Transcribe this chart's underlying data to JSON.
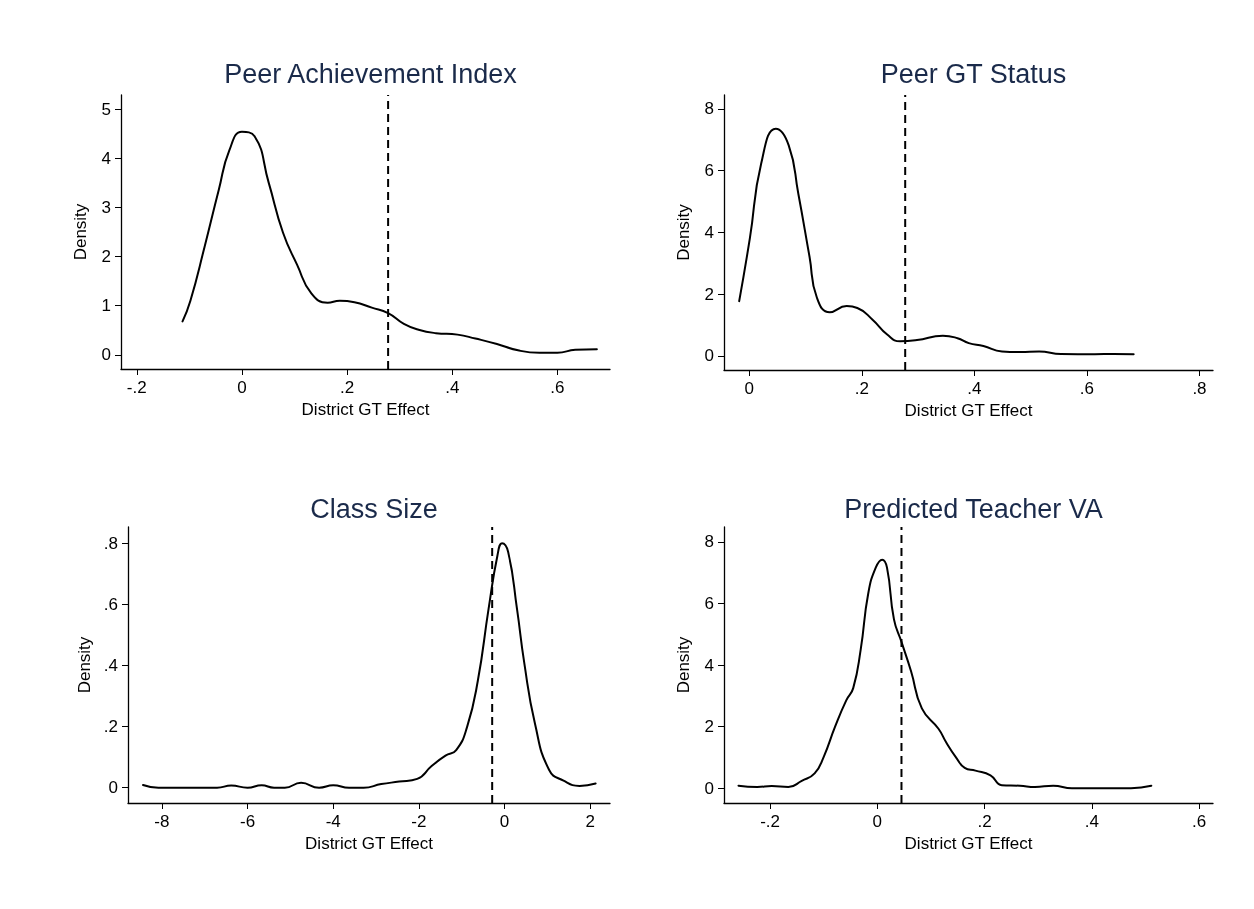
{
  "chart_data": [
    {
      "type": "line",
      "title": "Peer Achievement Index",
      "xlabel": "District GT Effect",
      "ylabel": "Density",
      "color": "#000000",
      "marker": "none",
      "line_style": "solid",
      "grid": false,
      "x": [
        -0.113,
        -0.098,
        -0.071,
        -0.044,
        -0.024,
        0,
        0.024,
        0.051,
        0.078,
        0.105,
        0.132,
        0.163,
        0.186,
        0.214,
        0.247,
        0.278,
        0.308,
        0.336,
        0.369,
        0.41,
        0.444,
        0.485,
        0.525,
        0.566,
        0.6,
        0.634,
        0.675
      ],
      "values": [
        0.68,
        1.1,
        2.2,
        3.36,
        4.16,
        4.54,
        4.45,
        3.5,
        2.49,
        1.83,
        1.25,
        1.06,
        1.1,
        1.07,
        0.96,
        0.85,
        0.63,
        0.51,
        0.44,
        0.41,
        0.33,
        0.22,
        0.09,
        0.04,
        0.04,
        0.1,
        0.11
      ],
      "xlim": [
        -0.23,
        0.7
      ],
      "ylim": [
        -0.29,
        5.29
      ],
      "xticks": [
        {
          "value": -0.2,
          "label": "-.2"
        },
        0,
        {
          "value": 0.2,
          "label": ".2"
        },
        {
          "value": 0.4,
          "label": ".4"
        },
        {
          "value": 0.6,
          "label": ".6"
        }
      ],
      "yticks": [
        0,
        1,
        2,
        3,
        4,
        5
      ],
      "ref_lines": [
        {
          "axis": "x",
          "value": 0.278,
          "color": "#000000",
          "line_style": "dashed"
        }
      ]
    },
    {
      "type": "line",
      "title": "Peer GT Status",
      "xlabel": "District GT Effect",
      "ylabel": "Density",
      "color": "#000000",
      "marker": "none",
      "line_style": "solid",
      "grid": false,
      "x": [
        -0.018,
        0.001,
        0.021,
        0.047,
        0.07,
        0.087,
        0.107,
        0.12,
        0.143,
        0.173,
        0.192,
        0.219,
        0.245,
        0.268,
        0.298,
        0.344,
        0.37,
        0.39,
        0.416,
        0.449,
        0.482,
        0.515,
        0.554,
        0.614,
        0.647,
        0.683
      ],
      "values": [
        1.77,
        3.81,
        6.22,
        7.36,
        6.82,
        5.26,
        3.21,
        1.89,
        1.41,
        1.61,
        1.55,
        1.17,
        0.69,
        0.47,
        0.51,
        0.65,
        0.57,
        0.41,
        0.32,
        0.14,
        0.12,
        0.14,
        0.06,
        0.05,
        0.06,
        0.05
      ],
      "xlim": [
        -0.045,
        0.824
      ],
      "ylim": [
        -0.46,
        8.45
      ],
      "xticks": [
        0,
        {
          "value": 0.2,
          "label": ".2"
        },
        {
          "value": 0.4,
          "label": ".4"
        },
        {
          "value": 0.6,
          "label": ".6"
        },
        {
          "value": 0.8,
          "label": ".8"
        }
      ],
      "yticks": [
        0,
        2,
        4,
        6,
        8
      ],
      "ref_lines": [
        {
          "axis": "x",
          "value": 0.277,
          "color": "#000000",
          "line_style": "dashed"
        }
      ]
    },
    {
      "type": "line",
      "title": "Class Size",
      "xlabel": "District GT Effect",
      "ylabel": "Density",
      "color": "#000000",
      "marker": "none",
      "line_style": "solid",
      "grid": false,
      "x": [
        -8.44,
        -8.08,
        -6.71,
        -6.38,
        -6.0,
        -5.67,
        -5.38,
        -5.13,
        -4.75,
        -4.33,
        -4.0,
        -3.63,
        -3.29,
        -2.88,
        -2.46,
        -2.04,
        -1.71,
        -1.38,
        -1.13,
        -0.875,
        -0.625,
        -0.375,
        -0.167,
        -0.06,
        0.083,
        0.29,
        0.458,
        0.708,
        1.04,
        1.375,
        1.75,
        2.125
      ],
      "values": [
        0.009,
        0,
        0,
        0.007,
        0,
        0.008,
        0,
        0,
        0.016,
        0,
        0.008,
        0,
        0,
        0.012,
        0.02,
        0.029,
        0.07,
        0.105,
        0.123,
        0.199,
        0.35,
        0.584,
        0.76,
        0.8,
        0.771,
        0.584,
        0.409,
        0.21,
        0.058,
        0.023,
        0.006,
        0.014
      ],
      "xlim": [
        -8.79,
        2.46
      ],
      "ylim": [
        -0.05,
        0.853
      ],
      "xticks": [
        -8,
        -6,
        -4,
        -2,
        0,
        2
      ],
      "yticks": [
        0,
        {
          "value": 0.2,
          "label": ".2"
        },
        {
          "value": 0.4,
          "label": ".4"
        },
        {
          "value": 0.6,
          "label": ".6"
        },
        {
          "value": 0.8,
          "label": ".8"
        }
      ],
      "ref_lines": [
        {
          "axis": "x",
          "value": -0.29,
          "color": "#000000",
          "line_style": "dashed"
        }
      ]
    },
    {
      "type": "line",
      "title": "Predicted Teacher VA",
      "xlabel": "District GT Effect",
      "ylabel": "Density",
      "color": "#000000",
      "marker": "none",
      "line_style": "solid",
      "grid": false,
      "x": [
        -0.259,
        -0.224,
        -0.197,
        -0.166,
        -0.141,
        -0.117,
        -0.1,
        -0.079,
        -0.058,
        -0.045,
        -0.031,
        -0.017,
        -0.003,
        0.009,
        0.018,
        0.031,
        0.045,
        0.063,
        0.083,
        0.114,
        0.128,
        0.146,
        0.163,
        0.183,
        0.211,
        0.232,
        0.266,
        0.294,
        0.328,
        0.363,
        0.473,
        0.511
      ],
      "values": [
        0.08,
        0.04,
        0.07,
        0.04,
        0.24,
        0.48,
        1.02,
        1.99,
        2.85,
        3.25,
        4.51,
        6.32,
        7.16,
        7.42,
        7.16,
        5.48,
        4.75,
        3.79,
        2.59,
        1.93,
        1.5,
        1.02,
        0.66,
        0.57,
        0.42,
        0.1,
        0.08,
        0.04,
        0.08,
        0,
        0,
        0.08
      ],
      "xlim": [
        -0.286,
        0.626
      ],
      "ylim": [
        -0.48,
        8.48
      ],
      "xticks": [
        {
          "value": -0.2,
          "label": "-.2"
        },
        0,
        {
          "value": 0.2,
          "label": ".2"
        },
        {
          "value": 0.4,
          "label": ".4"
        },
        {
          "value": 0.6,
          "label": ".6"
        }
      ],
      "yticks": [
        0,
        2,
        4,
        6,
        8
      ],
      "ref_lines": [
        {
          "axis": "x",
          "value": 0.045,
          "color": "#000000",
          "line_style": "dashed"
        }
      ]
    }
  ]
}
